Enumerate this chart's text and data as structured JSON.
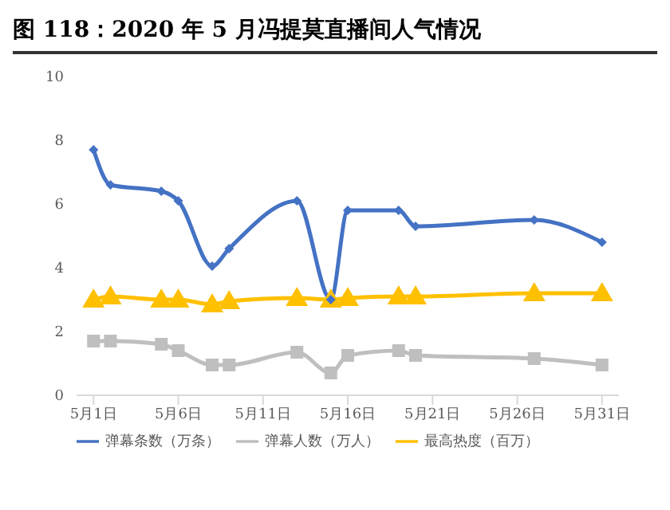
{
  "chart_data": {
    "type": "line",
    "title": "图 118：2020 年 5 月冯提莫直播间人气情况",
    "x": [
      "2020-05-01",
      "2020-05-02",
      "2020-05-05",
      "2020-05-06",
      "2020-05-08",
      "2020-05-09",
      "2020-05-13",
      "2020-05-15",
      "2020-05-16",
      "2020-05-19",
      "2020-05-20",
      "2020-05-27",
      "2020-05-31"
    ],
    "series": [
      {
        "name": "弹幕条数（万条）",
        "color": "#4472c4",
        "marker": "diamond",
        "values": [
          7.7,
          6.6,
          6.4,
          6.1,
          4.05,
          4.6,
          6.1,
          3.0,
          5.8,
          5.8,
          5.3,
          5.5,
          4.8
        ]
      },
      {
        "name": "弹幕人数（万人）",
        "color": "#bfbfbf",
        "marker": "square",
        "values": [
          1.7,
          1.7,
          1.6,
          1.4,
          0.95,
          0.95,
          1.35,
          0.7,
          1.25,
          1.4,
          1.25,
          1.15,
          0.95
        ]
      },
      {
        "name": "最高热度（百万）",
        "color": "#ffc000",
        "marker": "triangle",
        "values": [
          3.0,
          3.1,
          3.0,
          3.0,
          2.85,
          2.95,
          3.05,
          3.0,
          3.05,
          3.1,
          3.1,
          3.2,
          3.2
        ]
      }
    ],
    "xlim": [
      "2020-04-30",
      "2020-06-01"
    ],
    "xticks": [
      {
        "value": "2020-05-01",
        "label": "5月1日"
      },
      {
        "value": "2020-05-06",
        "label": "5月6日"
      },
      {
        "value": "2020-05-11",
        "label": "5月11日"
      },
      {
        "value": "2020-05-16",
        "label": "5月16日"
      },
      {
        "value": "2020-05-21",
        "label": "5月21日"
      },
      {
        "value": "2020-05-26",
        "label": "5月26日"
      },
      {
        "value": "2020-05-31",
        "label": "5月31日"
      }
    ],
    "ylim": [
      0,
      10
    ],
    "yticks": [
      0,
      2,
      4,
      6,
      8,
      10
    ],
    "grid": false,
    "legend": "bottom",
    "line_style": "solid"
  }
}
